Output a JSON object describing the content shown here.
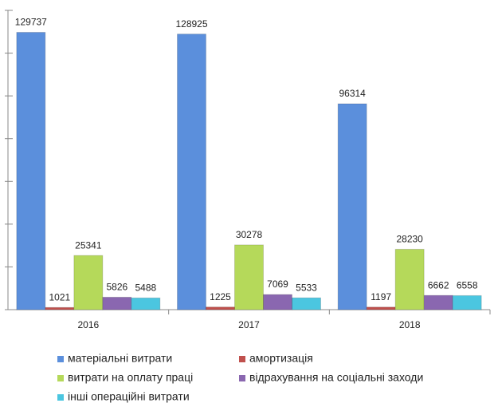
{
  "chart_data": {
    "type": "bar",
    "categories": [
      "2016",
      "2017",
      "2018"
    ],
    "series": [
      {
        "name": "матеріальні витрати",
        "color": "#5b8fdc",
        "values": [
          129737,
          128925,
          96314
        ]
      },
      {
        "name": "амортизація",
        "color": "#c0504d",
        "values": [
          1021,
          1225,
          1197
        ]
      },
      {
        "name": "витрати на оплату праці",
        "color": "#b5d95a",
        "values": [
          25341,
          30278,
          28230
        ]
      },
      {
        "name": "відрахування на соціальні заходи",
        "color": "#8a67b0",
        "values": [
          5826,
          7069,
          6662
        ]
      },
      {
        "name": "інші операційні витрати",
        "color": "#4bc6e0",
        "values": [
          5488,
          5533,
          6558
        ]
      }
    ],
    "ylim": [
      0,
      140000
    ],
    "yticks": [
      0,
      20000,
      40000,
      60000,
      80000,
      100000,
      120000,
      140000
    ],
    "grid": false
  }
}
